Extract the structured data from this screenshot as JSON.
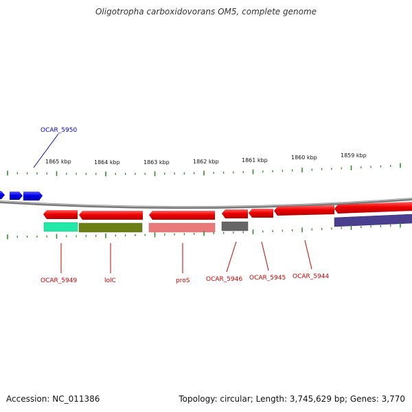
{
  "title": "Oligotropha carboxidovorans OM5, complete genome",
  "accession_text": "Accession: NC_011386",
  "summary_text": "Topology: circular; Length: 3,745,629 bp; Genes: 3,770",
  "scale_labels": [
    "1865 kbp",
    "1864 kbp",
    "1863 kbp",
    "1862 kbp",
    "1861 kbp",
    "1860 kbp",
    "1859 kbp"
  ],
  "gene_labels_top": [
    "OCAR_5950"
  ],
  "gene_labels_bottom": [
    "OCAR_5949",
    "lolC",
    "proS",
    "OCAR_5946",
    "OCAR_5945",
    "OCAR_5944"
  ],
  "colors": {
    "forward_gene": "#0000ee",
    "reverse_gene": "#ee0000",
    "backbone": "#808080",
    "tick": "#2f8a2f",
    "label_forward": "#0000cc",
    "label_reverse": "#cc0000"
  },
  "cog_colors": [
    "#22e8a8",
    "#6b7f16",
    "#e87a7a",
    "#666666",
    "#4a3f8f"
  ]
}
